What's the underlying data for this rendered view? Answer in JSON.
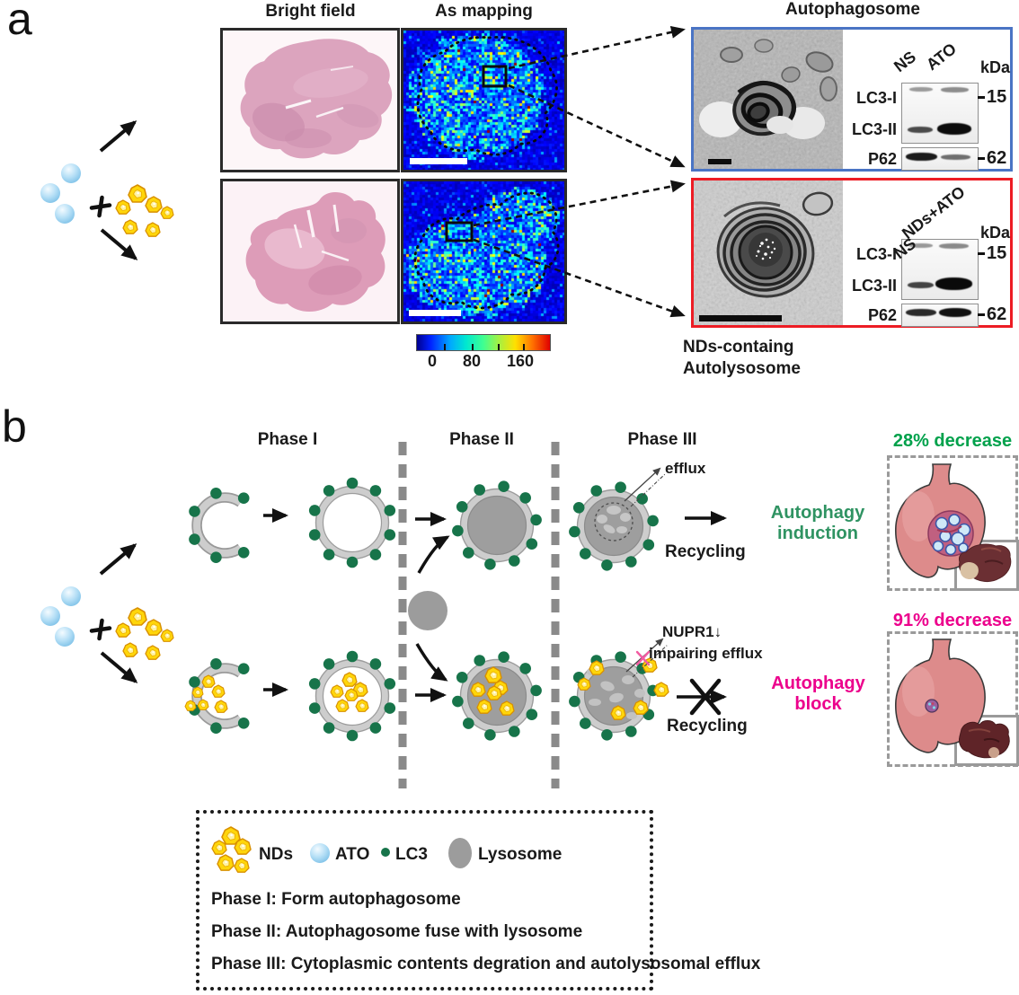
{
  "panel_a": {
    "label": "a",
    "headers": {
      "bright_field": "Bright field",
      "as_mapping": "As mapping",
      "autophagosome": "Autophagosome"
    },
    "autolysosome_caption": {
      "line1": "NDs-containg",
      "line2": "Autolysosome"
    },
    "colorbar": {
      "tick_labels": [
        "0",
        "80",
        "160"
      ],
      "range": [
        0,
        160
      ]
    },
    "blot_top": {
      "lanes": [
        "NS",
        "ATO"
      ],
      "unit": "kDa",
      "rows": [
        "LC3-I",
        "LC3-II",
        "P62"
      ],
      "markers": [
        "15",
        "62"
      ]
    },
    "blot_bottom": {
      "lanes": [
        "NS",
        "NDs+ATO"
      ],
      "unit": "kDa",
      "rows": [
        "LC3-I",
        "LC3-II",
        "P62"
      ],
      "markers": [
        "15",
        "62"
      ]
    }
  },
  "panel_b": {
    "label": "b",
    "phase_headers": [
      "Phase I",
      "Phase II",
      "Phase III"
    ],
    "top_pathway": {
      "efflux": "efflux",
      "recycling": "Recycling",
      "outcome_line1": "Autophagy",
      "outcome_line2": "induction",
      "result": "28% decrease"
    },
    "bottom_pathway": {
      "nupr1": "NUPR1↓",
      "impairing": "impairing efflux",
      "recycling": "Recycling",
      "outcome_line1": "Autophagy",
      "outcome_line2": "block",
      "result": "91% decrease"
    }
  },
  "legend": {
    "items": [
      {
        "label": "NDs"
      },
      {
        "label": "ATO"
      },
      {
        "label": "LC3"
      },
      {
        "label": "Lysosome"
      }
    ],
    "phases": [
      "Phase I: Form autophagosome",
      "Phase II: Autophagosome fuse with lysosome",
      "Phase III: Cytoplasmic contents degration and autolysosomal efflux"
    ]
  },
  "colors": {
    "green_text": "#2f9362",
    "bright_green": "#00a14b",
    "magenta": "#ec008c",
    "lc3_dot": "#17744a",
    "blue_frame": "#4a74c4",
    "red_frame": "#ed1c24"
  }
}
